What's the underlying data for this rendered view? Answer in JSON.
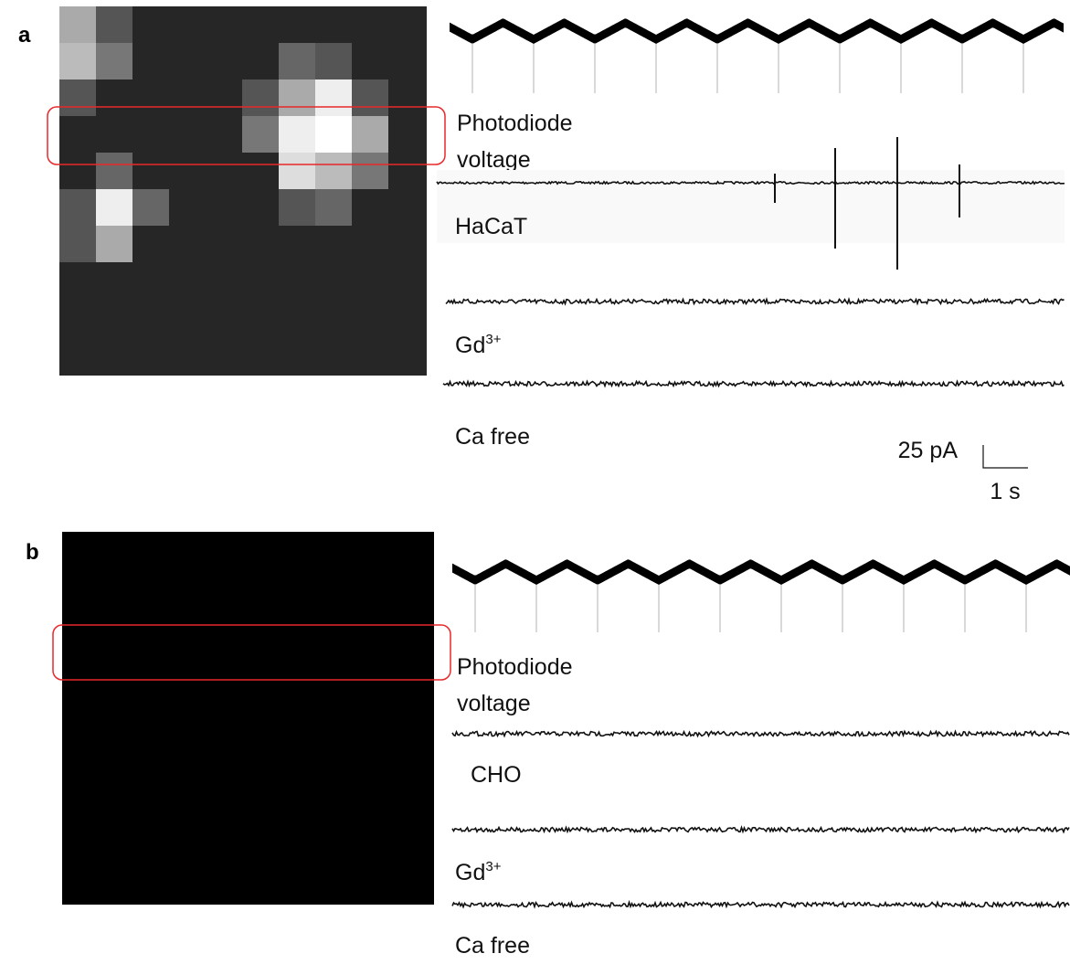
{
  "panels": [
    {
      "label": "a",
      "photodiode": [
        "Photodiode",
        "voltage"
      ],
      "conditions": [
        {
          "label": "HaCaT"
        },
        {
          "label": "Gd",
          "sup": "3+"
        },
        {
          "label": "Ca free"
        }
      ],
      "scale_bar": {
        "current": "25 pA",
        "time": "1 s"
      }
    },
    {
      "label": "b",
      "photodiode": [
        "Photodiode",
        "voltage"
      ],
      "conditions": [
        {
          "label": "CHO"
        },
        {
          "label": "Gd",
          "sup": "3+"
        },
        {
          "label": "Ca free"
        }
      ]
    }
  ]
}
